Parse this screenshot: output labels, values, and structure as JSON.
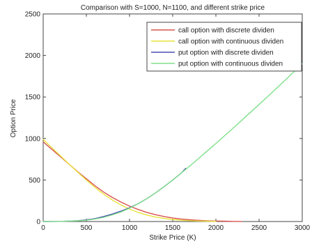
{
  "chart_data": {
    "type": "line",
    "title": "Comparison with S=1000, N=1100, and different strike price",
    "xlabel": "Strike Price (K)",
    "ylabel": "Option Price",
    "xlim": [
      0,
      3000
    ],
    "ylim": [
      0,
      2500
    ],
    "xticks": [
      "0",
      "500",
      "1000",
      "1500",
      "2000",
      "2500",
      "3000"
    ],
    "yticks": [
      "0",
      "500",
      "1000",
      "1500",
      "2000",
      "2500"
    ],
    "grid": false,
    "legend_position": "top-right",
    "series": [
      {
        "name": "call option with discrete dividen",
        "color": "#d9534f",
        "x": [
          0,
          100,
          200,
          300,
          400,
          500,
          600,
          700,
          800,
          900,
          1000,
          1100,
          1200,
          1300,
          1400,
          1500,
          1600,
          1700,
          1800,
          1900,
          2000,
          2100,
          2200,
          2300
        ],
        "y": [
          960,
          870,
          780,
          690,
          600,
          515,
          430,
          355,
          290,
          235,
          185,
          145,
          110,
          82,
          60,
          43,
          30,
          21,
          14,
          9,
          6,
          4,
          2,
          1
        ]
      },
      {
        "name": "call option with continuous dividen",
        "color": "#e8e23a",
        "x": [
          0,
          100,
          200,
          300,
          400,
          500,
          600,
          700,
          800,
          900,
          1000,
          1100,
          1200,
          1300,
          1400,
          1500,
          1600,
          1700,
          1800,
          1900,
          2000
        ],
        "y": [
          990,
          890,
          790,
          690,
          595,
          500,
          410,
          330,
          260,
          200,
          150,
          110,
          78,
          54,
          37,
          25,
          16,
          10,
          6,
          4,
          2
        ]
      },
      {
        "name": "put option with discrete dividen",
        "color": "#4a4fb0",
        "x": [
          0,
          200,
          400,
          500,
          600,
          700,
          800,
          900,
          1000,
          1100,
          1200,
          1300,
          1400,
          1500,
          1600,
          1650
        ],
        "y": [
          0,
          2,
          10,
          20,
          35,
          60,
          90,
          125,
          165,
          215,
          275,
          345,
          420,
          500,
          585,
          640
        ]
      },
      {
        "name": "put option with continuous dividen",
        "color": "#7fe08a",
        "x": [
          0,
          200,
          400,
          500,
          600,
          700,
          800,
          900,
          1000,
          1100,
          1200,
          1300,
          1400,
          1500,
          1600,
          1700,
          1800,
          1900,
          2000,
          2200,
          2400,
          2600,
          2800,
          3000
        ],
        "y": [
          0,
          2,
          8,
          16,
          30,
          50,
          80,
          115,
          160,
          215,
          275,
          345,
          420,
          500,
          585,
          670,
          760,
          850,
          940,
          1125,
          1315,
          1505,
          1700,
          1900
        ]
      }
    ]
  }
}
